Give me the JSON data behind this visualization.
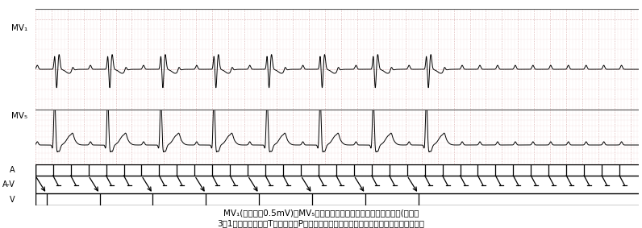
{
  "title_line1": "MV₁(定准电压0.5mV)、MV₅导联同步记录，显示二度房室传导阻滞(房室呂",
  "title_line2": "3：1传导，提示落在T波降肢上的P波在房室交接区发生隐匯性传导）、完全性右束支阻滞",
  "bg_color": "#ffffff",
  "ecg_color": "#000000",
  "grid_color": "#e8b8b8",
  "grid_major_color": "#cc9090",
  "label_A": "A",
  "label_AV": "A-V",
  "label_V": "V",
  "mv1_label": "MV₁",
  "mv5_label": "MV₅",
  "fig_width": 7.96,
  "fig_height": 2.83,
  "ecg_duration": 7.5,
  "p_interval": 0.22,
  "av_ratio": 3,
  "conducted_p_indices": [
    0,
    3,
    6,
    9,
    12,
    15,
    18,
    21
  ]
}
